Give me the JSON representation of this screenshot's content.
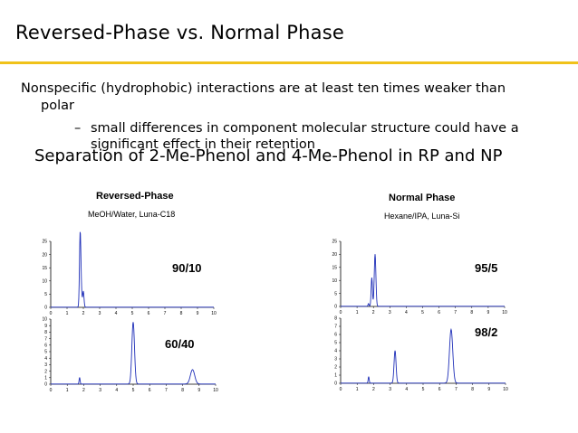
{
  "slide": {
    "title": "Reversed-Phase vs. Normal Phase",
    "bullet": "Nonspecific (hydrophobic) interactions are at least ten times weaker than",
    "bullet_cont": "polar",
    "dash": "–",
    "sub_bullet": "small differences in component molecular structure could have a significant effect in their retention",
    "section": "Separation of 2-Me-Phenol and 4-Me-Phenol in RP and NP"
  },
  "panels": {
    "rp": {
      "title": "Reversed-Phase",
      "subtitle": "MeOH/Water, Luna-C18"
    },
    "np": {
      "title": "Normal Phase",
      "subtitle": "Hexane/IPA, Luna-Si"
    }
  },
  "colors": {
    "trace": "#1f2fb8",
    "axis": "#000000",
    "accent_rule": "#f0c21a"
  },
  "chart_data": [
    {
      "type": "line",
      "panel": "Reversed-Phase",
      "annotation": "90/10",
      "xlim": [
        0,
        10
      ],
      "ylim": [
        0,
        25
      ],
      "xticks": [
        0,
        1,
        2,
        3,
        4,
        5,
        6,
        7,
        8,
        9,
        10
      ],
      "yticks": [
        0,
        5,
        10,
        15,
        20,
        25
      ],
      "peaks": [
        {
          "x": 1.8,
          "height": 23,
          "width": 0.04
        },
        {
          "x": 1.85,
          "height": 9,
          "width": 0.05
        },
        {
          "x": 2.0,
          "height": 6,
          "width": 0.04
        }
      ]
    },
    {
      "type": "line",
      "panel": "Reversed-Phase",
      "annotation": "60/40",
      "xlim": [
        0,
        10
      ],
      "ylim": [
        0,
        10
      ],
      "xticks": [
        0,
        1,
        2,
        3,
        4,
        5,
        6,
        7,
        8,
        9,
        10
      ],
      "yticks": [
        0,
        1,
        2,
        3,
        4,
        5,
        6,
        7,
        8,
        9,
        10
      ],
      "peaks": [
        {
          "x": 1.75,
          "height": 1.0,
          "width": 0.03
        },
        {
          "x": 5.0,
          "height": 9.5,
          "width": 0.08
        },
        {
          "x": 8.6,
          "height": 2.2,
          "width": 0.13
        }
      ]
    },
    {
      "type": "line",
      "panel": "Normal Phase",
      "annotation": "95/5",
      "xlim": [
        0,
        10
      ],
      "ylim": [
        0,
        25
      ],
      "xticks": [
        0,
        1,
        2,
        3,
        4,
        5,
        6,
        7,
        8,
        9,
        10
      ],
      "yticks": [
        0,
        5,
        10,
        15,
        20,
        25
      ],
      "peaks": [
        {
          "x": 1.9,
          "height": 11,
          "width": 0.04
        },
        {
          "x": 2.1,
          "height": 20,
          "width": 0.05
        },
        {
          "x": 1.7,
          "height": 1,
          "width": 0.03
        }
      ]
    },
    {
      "type": "line",
      "panel": "Normal Phase",
      "annotation": "98/2",
      "xlim": [
        0,
        10
      ],
      "ylim": [
        0,
        8
      ],
      "xticks": [
        0,
        1,
        2,
        3,
        4,
        5,
        6,
        7,
        8,
        9,
        10
      ],
      "yticks": [
        0,
        1,
        2,
        3,
        4,
        5,
        6,
        7,
        8
      ],
      "peaks": [
        {
          "x": 1.7,
          "height": 0.8,
          "width": 0.03
        },
        {
          "x": 3.3,
          "height": 4.0,
          "width": 0.06
        },
        {
          "x": 6.7,
          "height": 6.6,
          "width": 0.1
        }
      ]
    }
  ]
}
